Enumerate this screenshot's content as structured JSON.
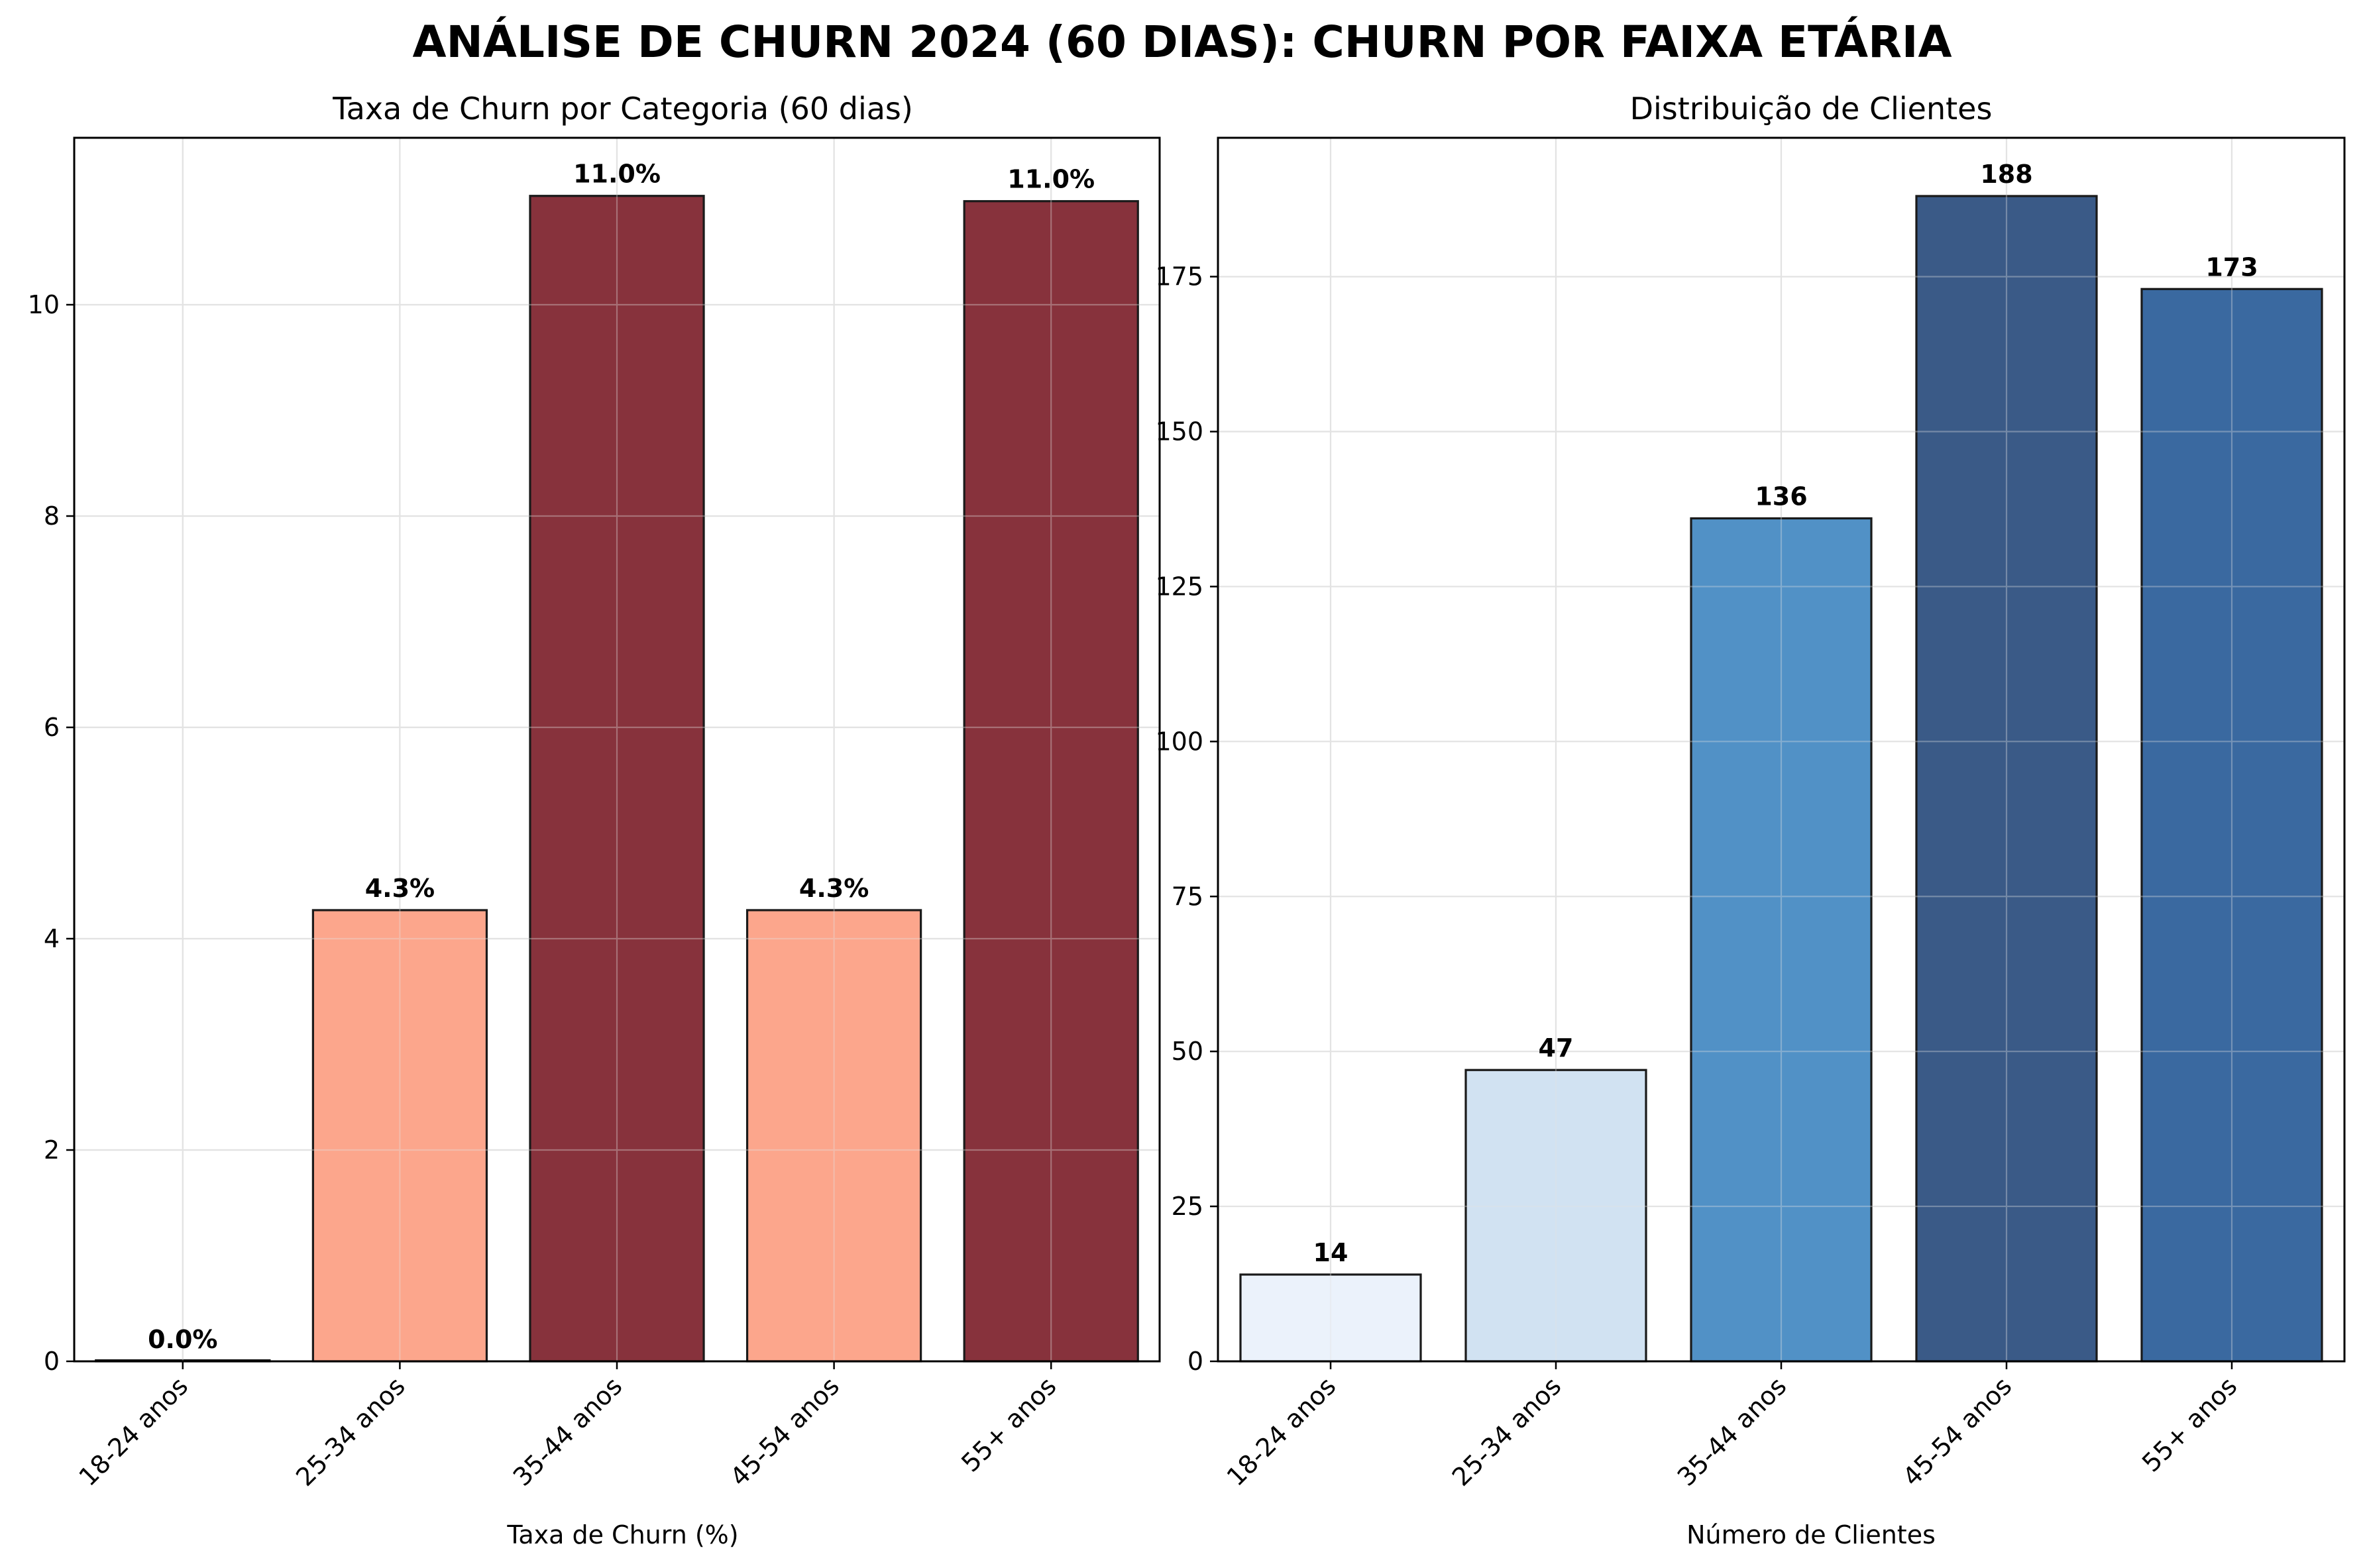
{
  "figure_title": "ANÁLISE DE CHURN 2024 (60 DIAS): CHURN POR FAIXA ETÁRIA",
  "chart_data": [
    {
      "type": "bar",
      "title": "Taxa de Churn por Categoria (60 dias)",
      "xlabel": "Taxa de Churn (%)",
      "ylabel": "",
      "categories": [
        "18-24 anos",
        "25-34 anos",
        "35-44 anos",
        "45-54 anos",
        "55+ anos"
      ],
      "values": [
        0.0,
        4.27,
        11.03,
        4.27,
        10.98
      ],
      "value_labels": [
        "0.0%",
        "4.3%",
        "11.0%",
        "4.3%",
        "11.0%"
      ],
      "colors": [
        "#fee0d2",
        "#fca68c",
        "#87323c",
        "#fca68c",
        "#87323c"
      ],
      "ylim": [
        0,
        11.58
      ],
      "yticks": [
        0,
        2,
        4,
        6,
        8,
        10
      ],
      "grid": true
    },
    {
      "type": "bar",
      "title": "Distribuição de Clientes",
      "xlabel": "Número de Clientes",
      "ylabel": "",
      "categories": [
        "18-24 anos",
        "25-34 anos",
        "35-44 anos",
        "45-54 anos",
        "55+ anos"
      ],
      "values": [
        14,
        47,
        136,
        188,
        173
      ],
      "value_labels": [
        "14",
        "47",
        "136",
        "188",
        "173"
      ],
      "colors": [
        "#ebf2fb",
        "#d1e2f2",
        "#5191c6",
        "#3a5a87",
        "#3a69a0"
      ],
      "ylim": [
        0,
        197.4
      ],
      "yticks": [
        0,
        25,
        50,
        75,
        100,
        125,
        150,
        175
      ],
      "grid": true
    }
  ]
}
